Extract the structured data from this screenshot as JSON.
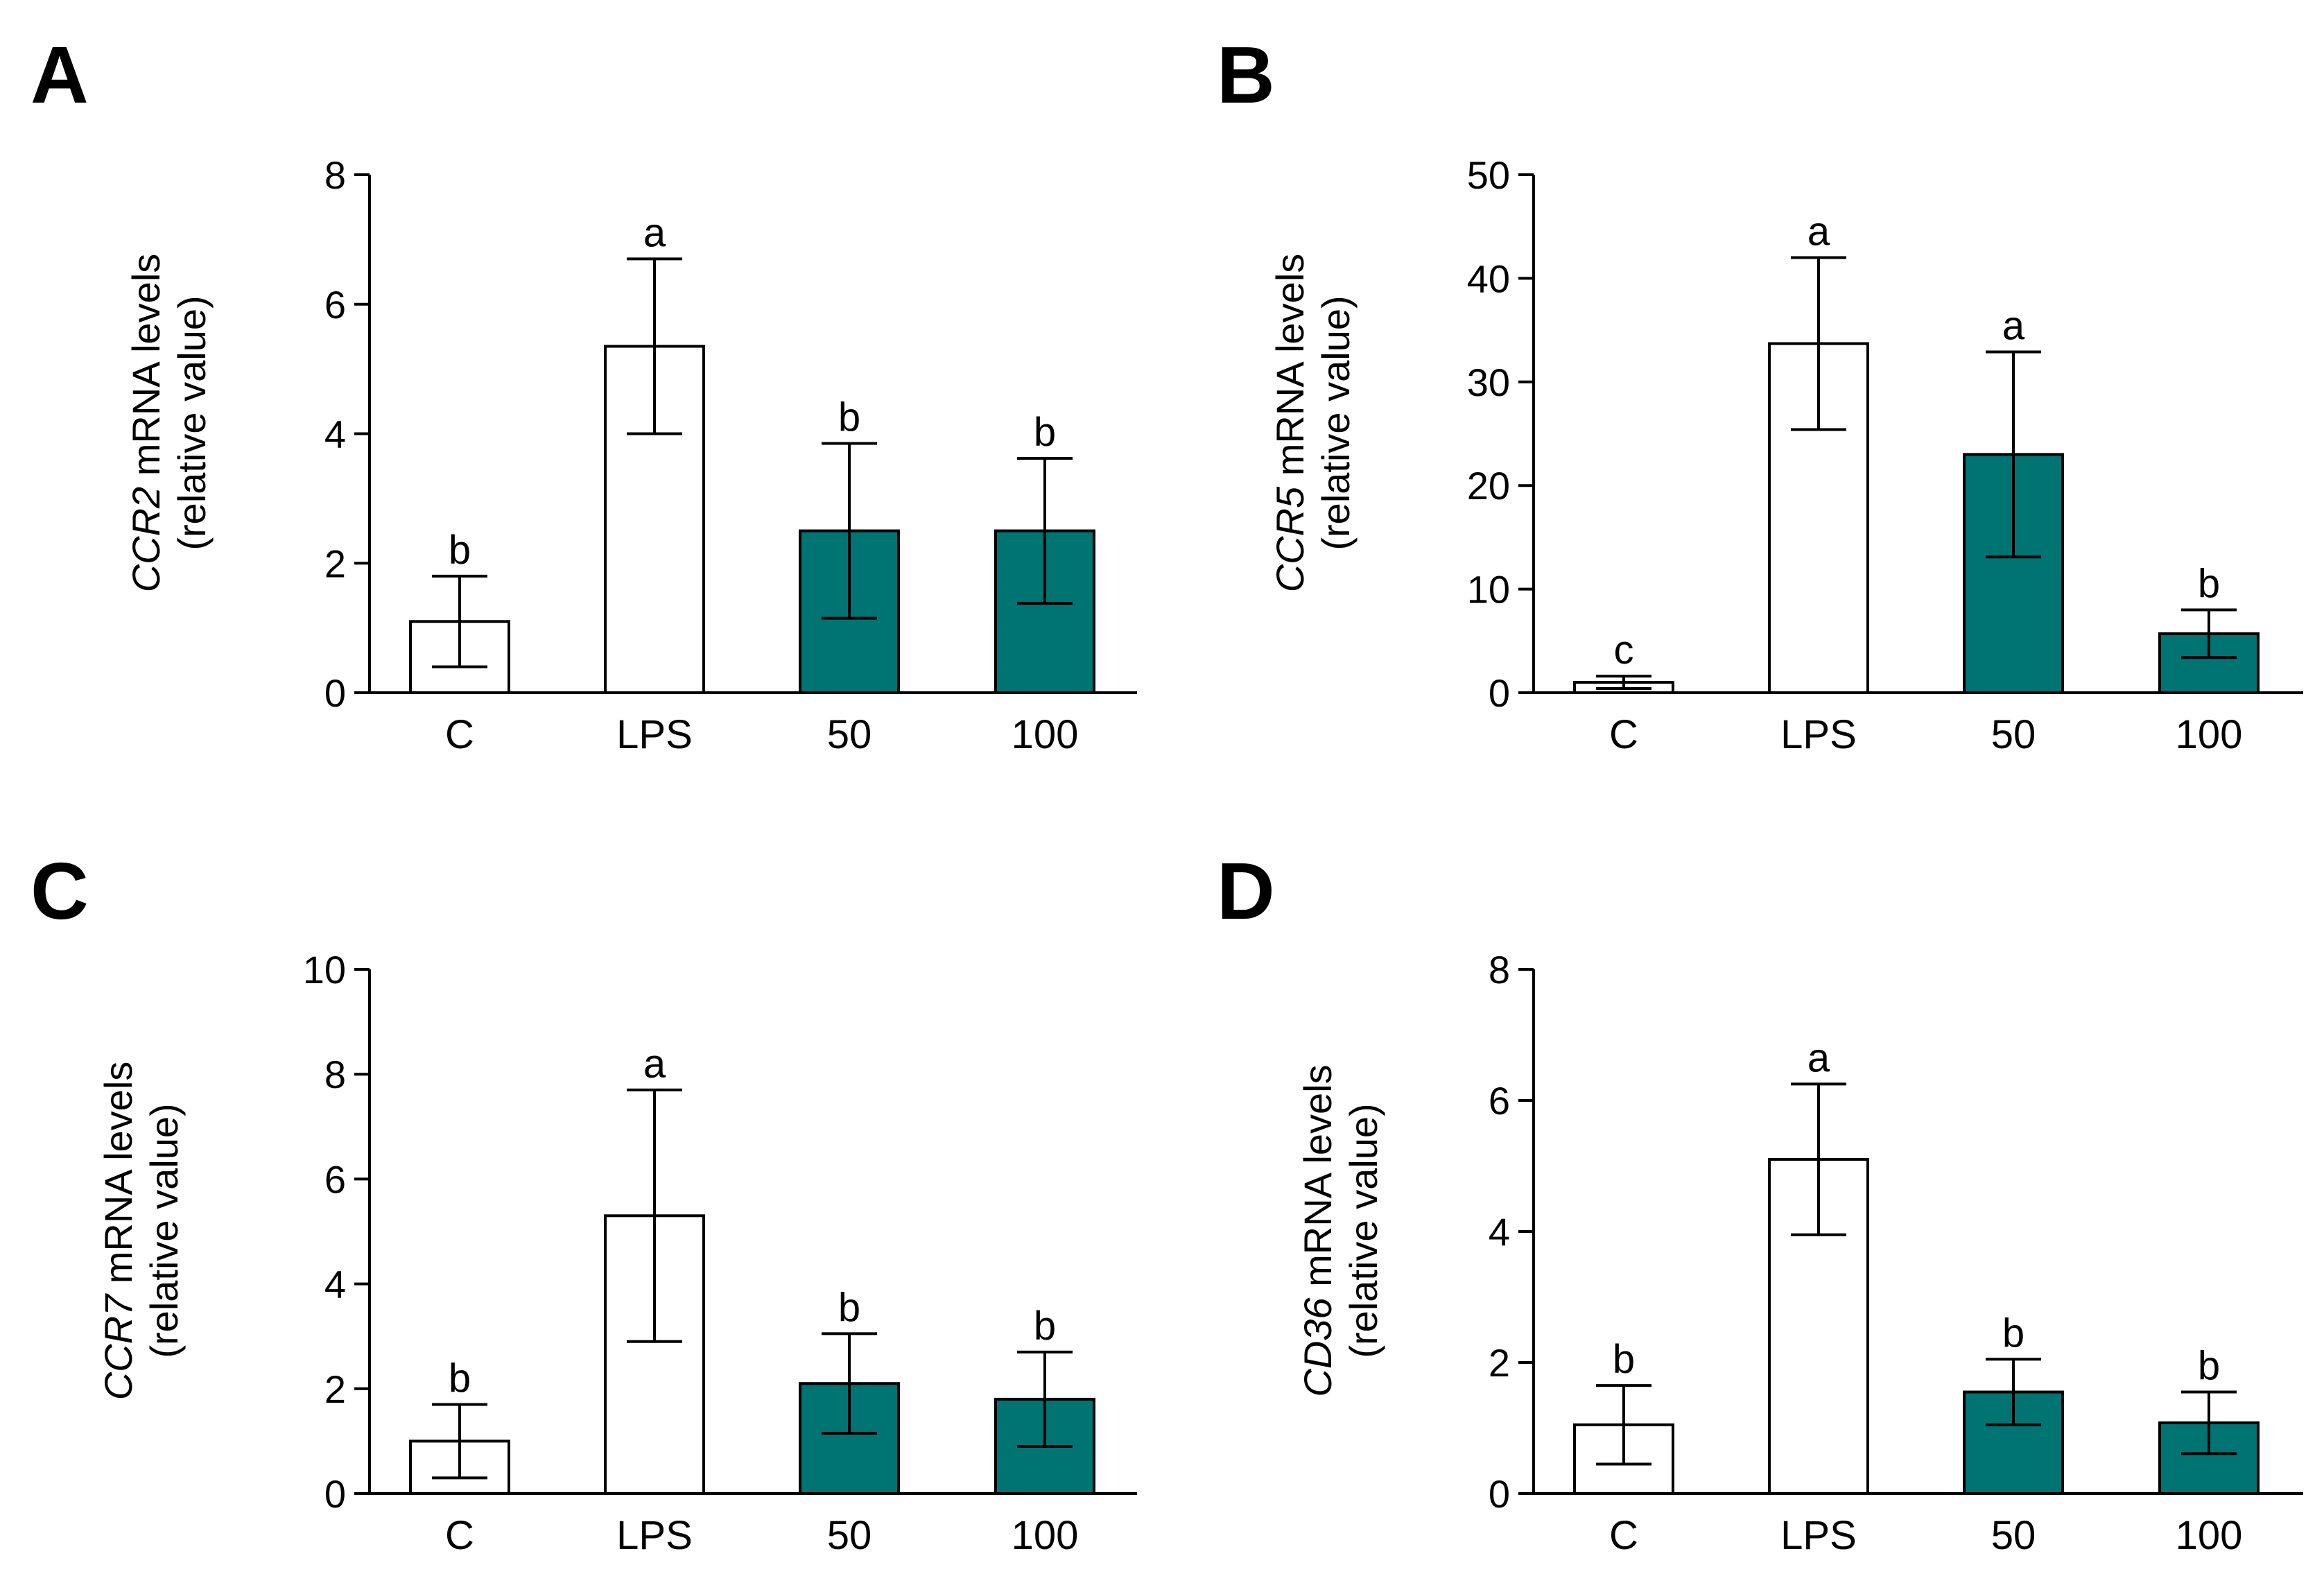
{
  "chart_data": [
    {
      "type": "bar",
      "panel": "A",
      "gene": "CCR2",
      "ylabel_rest": " mRNA levels",
      "ylabel_line2": "(relative value)",
      "categories": [
        "C",
        "LPS",
        "50",
        "100"
      ],
      "values": [
        1.1,
        5.35,
        2.5,
        2.5
      ],
      "errors": [
        0.7,
        1.35,
        1.35,
        1.12
      ],
      "significance": [
        "b",
        "a",
        "b",
        "b"
      ],
      "ylim": [
        0,
        8
      ],
      "yticks": [
        0,
        2,
        4,
        6,
        8
      ],
      "colors": [
        "#ffffff",
        "#ffffff",
        "#007373",
        "#007373"
      ]
    },
    {
      "type": "bar",
      "panel": "B",
      "gene": "CCR5",
      "ylabel_rest": " mRNA levels",
      "ylabel_line2": "(relative value)",
      "categories": [
        "C",
        "LPS",
        "50",
        "100"
      ],
      "values": [
        1.0,
        33.7,
        23.0,
        5.7
      ],
      "errors": [
        0.6,
        8.3,
        9.9,
        2.3
      ],
      "significance": [
        "c",
        "a",
        "a",
        "b"
      ],
      "ylim": [
        0,
        50
      ],
      "yticks": [
        0,
        10,
        20,
        30,
        40,
        50
      ],
      "colors": [
        "#ffffff",
        "#ffffff",
        "#007373",
        "#007373"
      ]
    },
    {
      "type": "bar",
      "panel": "C",
      "gene": "CCR7",
      "ylabel_rest": " mRNA levels",
      "ylabel_line2": "(relative value)",
      "categories": [
        "C",
        "LPS",
        "50",
        "100"
      ],
      "values": [
        1.0,
        5.3,
        2.1,
        1.8
      ],
      "errors": [
        0.7,
        2.4,
        0.95,
        0.9
      ],
      "significance": [
        "b",
        "a",
        "b",
        "b"
      ],
      "ylim": [
        0,
        10
      ],
      "yticks": [
        0,
        2,
        4,
        6,
        8,
        10
      ],
      "colors": [
        "#ffffff",
        "#ffffff",
        "#007373",
        "#007373"
      ]
    },
    {
      "type": "bar",
      "panel": "D",
      "gene": "CD36",
      "ylabel_rest": " mRNA levels",
      "ylabel_line2": "(relative value)",
      "categories": [
        "C",
        "LPS",
        "50",
        "100"
      ],
      "values": [
        1.05,
        5.1,
        1.55,
        1.08
      ],
      "errors": [
        0.6,
        1.15,
        0.5,
        0.47
      ],
      "significance": [
        "b",
        "a",
        "b",
        "b"
      ],
      "ylim": [
        0,
        8
      ],
      "yticks": [
        0,
        2,
        4,
        6,
        8
      ],
      "colors": [
        "#ffffff",
        "#ffffff",
        "#007373",
        "#007373"
      ]
    }
  ]
}
